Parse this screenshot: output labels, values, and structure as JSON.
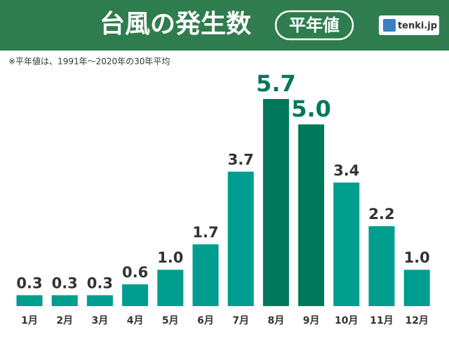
{
  "chart_data": {
    "type": "bar",
    "title": "台風の発生数",
    "badge": "平年値",
    "logo": "tenki.jp",
    "note": "※平年値は、1991年～2020年の30年平均",
    "categories": [
      "1月",
      "2月",
      "3月",
      "4月",
      "5月",
      "6月",
      "7月",
      "8月",
      "9月",
      "10月",
      "11月",
      "12月"
    ],
    "values": [
      0.3,
      0.3,
      0.3,
      0.6,
      1.0,
      1.7,
      3.7,
      5.7,
      5.0,
      3.4,
      2.2,
      1.0
    ],
    "value_labels": [
      "0.3",
      "0.3",
      "0.3",
      "0.6",
      "1.0",
      "1.7",
      "3.7",
      "5.7",
      "5.0",
      "3.4",
      "2.2",
      "1.0"
    ],
    "colors": [
      "#009e8e",
      "#009e8e",
      "#009e8e",
      "#009e8e",
      "#009e8e",
      "#009e8e",
      "#009e8e",
      "#00785a",
      "#00785a",
      "#009e8e",
      "#009e8e",
      "#009e8e"
    ]
  }
}
